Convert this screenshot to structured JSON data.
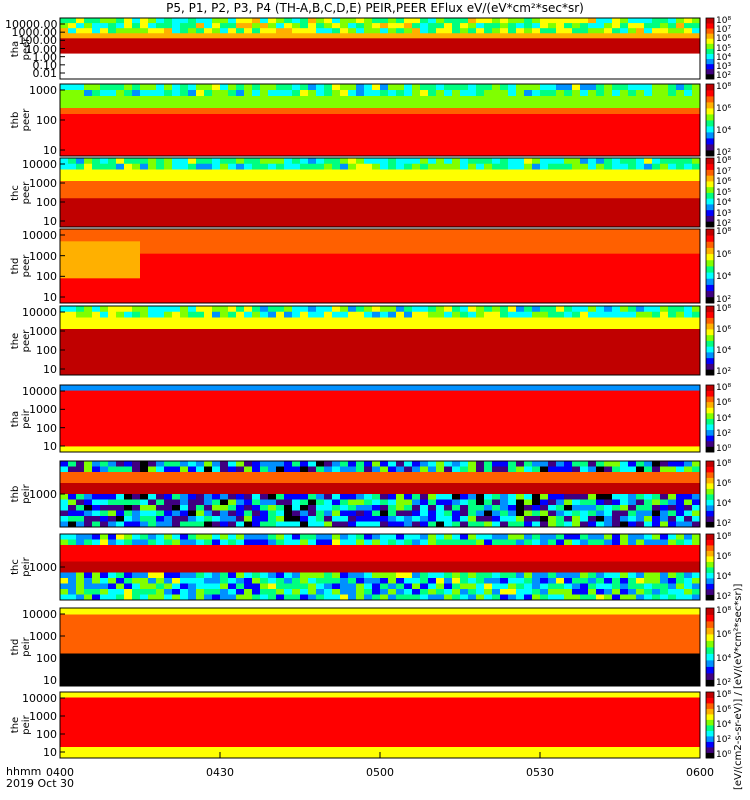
{
  "title": "P5, P1, P2, P3, P4 (TH-A,B,C,D,E) PEIR,PEER EFlux eV/(eV*cm²*sec*sr)",
  "x_axis": {
    "tick_labels": [
      "0400",
      "0430",
      "0500",
      "0530",
      "0600"
    ],
    "label_line1": "hhmm",
    "label_line2": "2019 Oct 30"
  },
  "colorbar_label": "[eV/(cm2-s-sr-eV)] / [eV/(eV*cm²*sec*sr)]",
  "colors": {
    "scale": [
      "#000000",
      "#400080",
      "#0000ff",
      "#0090ff",
      "#00ffff",
      "#00ff80",
      "#80ff00",
      "#ffff00",
      "#ffb000",
      "#ff6000",
      "#ff0000",
      "#c00000"
    ]
  },
  "chart_data": [
    {
      "type": "heatmap",
      "name_line1": "tha",
      "name_line2": "peer",
      "y_ticks": [
        "10000.00",
        "1000.00",
        "100.00",
        "10.00",
        "1.00",
        "0.10",
        "0.01"
      ],
      "cb_ticks": [
        "10⁸",
        "10⁷",
        "10⁶",
        "10⁵",
        "10⁴",
        "10³",
        "10²"
      ]
    },
    {
      "type": "heatmap",
      "name_line1": "thb",
      "name_line2": "peer",
      "y_ticks": [
        "1000",
        "100",
        "10"
      ],
      "cb_ticks": [
        "10⁸",
        "10⁶",
        "10⁴",
        "10²"
      ]
    },
    {
      "type": "heatmap",
      "name_line1": "thc",
      "name_line2": "peer",
      "y_ticks": [
        "10000",
        "1000",
        "100",
        "10"
      ],
      "cb_ticks": [
        "10⁸",
        "10⁷",
        "10⁶",
        "10⁵",
        "10⁴",
        "10³",
        "10²"
      ]
    },
    {
      "type": "heatmap",
      "name_line1": "thd",
      "name_line2": "peer",
      "y_ticks": [
        "10000",
        "1000",
        "100",
        "10"
      ],
      "cb_ticks": [
        "10⁸",
        "10⁶",
        "10⁴",
        "10²"
      ]
    },
    {
      "type": "heatmap",
      "name_line1": "the",
      "name_line2": "peer",
      "y_ticks": [
        "10000",
        "1000",
        "100",
        "10"
      ],
      "cb_ticks": [
        "10⁸",
        "10⁶",
        "10⁴",
        "10²"
      ]
    },
    {
      "type": "heatmap",
      "name_line1": "tha",
      "name_line2": "peir",
      "y_ticks": [
        "10000",
        "1000",
        "100",
        "10"
      ],
      "cb_ticks": [
        "10⁸",
        "10⁶",
        "10⁴",
        "10²",
        "10⁰"
      ]
    },
    {
      "type": "heatmap",
      "name_line1": "thb",
      "name_line2": "peir",
      "y_ticks": [
        "1000"
      ],
      "cb_ticks": [
        "10⁸",
        "10⁶",
        "10⁴",
        "10²"
      ]
    },
    {
      "type": "heatmap",
      "name_line1": "thc",
      "name_line2": "peir",
      "y_ticks": [
        "1000"
      ],
      "cb_ticks": [
        "10⁸",
        "10⁶",
        "10⁴",
        "10²"
      ]
    },
    {
      "type": "heatmap",
      "name_line1": "thd",
      "name_line2": "peir",
      "y_ticks": [
        "10000",
        "1000",
        "100",
        "10"
      ],
      "cb_ticks": [
        "10⁸",
        "10⁶",
        "10⁴",
        "10²"
      ]
    },
    {
      "type": "heatmap",
      "name_line1": "the",
      "name_line2": "peir",
      "y_ticks": [
        "10000",
        "1000",
        "100",
        "10"
      ],
      "cb_ticks": [
        "10⁸",
        "10⁶",
        "10⁴",
        "10²",
        "10⁰"
      ]
    }
  ]
}
